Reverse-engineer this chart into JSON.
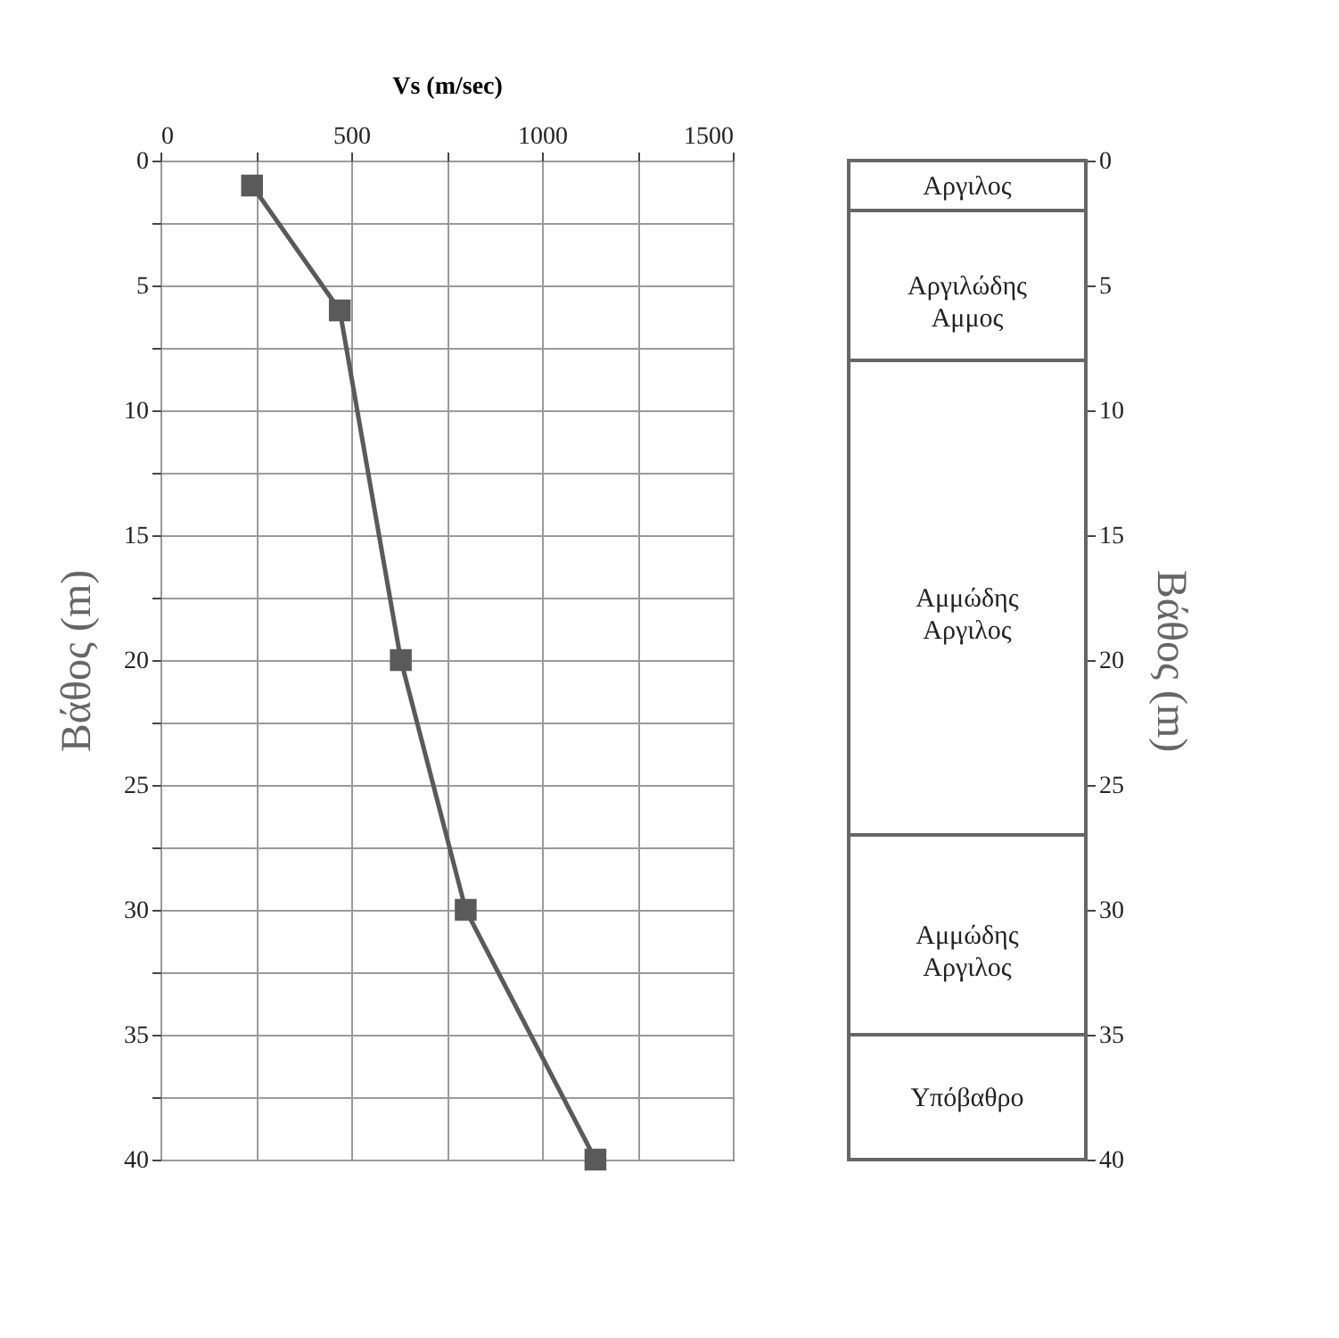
{
  "chart_data": [
    {
      "type": "line",
      "xlabel": "Vs (m/sec)",
      "ylabel": "Βάθος (m)",
      "x": [
        240,
        470,
        630,
        800,
        1140
      ],
      "xlim": [
        0,
        1500
      ],
      "xticks": [
        0,
        {
          "value": 250,
          "label": null
        },
        500,
        {
          "value": 750,
          "label": null
        },
        1000,
        {
          "value": 1250,
          "label": null
        },
        1500
      ],
      "ylim": [
        40,
        0
      ],
      "yticks": [
        0,
        {
          "value": 2.5,
          "label": null
        },
        5,
        {
          "value": 7.5,
          "label": null
        },
        10,
        {
          "value": 12.5,
          "label": null
        },
        15,
        {
          "value": 17.5,
          "label": null
        },
        20,
        {
          "value": 22.5,
          "label": null
        },
        25,
        {
          "value": 27.5,
          "label": null
        },
        30,
        {
          "value": 32.5,
          "label": null
        },
        35,
        {
          "value": 37.5,
          "label": null
        },
        40
      ],
      "series": [
        {
          "color": "#5a5a5a",
          "values": [
            1,
            6,
            20,
            30,
            40
          ]
        }
      ],
      "grid": true,
      "marker": "square",
      "line_style": "solid",
      "legend": false
    },
    {
      "type": "bar",
      "stacked": true,
      "categories": [
        null
      ],
      "ylabel": "Βάθος (m)",
      "ylim": [
        40,
        0
      ],
      "yticks": [
        0,
        5,
        10,
        15,
        20,
        25,
        30,
        35,
        40
      ],
      "tick_labels": "y",
      "legend": false,
      "series": [
        {
          "name": "Αργιλος",
          "color": "#ffffff",
          "values": [
            2
          ]
        },
        {
          "name": "Αργιλώδης Αμμος",
          "color": "#ffffff",
          "values": [
            6
          ]
        },
        {
          "name": "Αμμώδης Αργιλος",
          "color": "#ffffff",
          "values": [
            19
          ]
        },
        {
          "name": "Αμμώδης Αργιλος",
          "color": "#ffffff",
          "values": [
            8
          ]
        },
        {
          "name": "Υπόβαθρο",
          "color": "#ffffff",
          "values": [
            5
          ]
        }
      ]
    }
  ]
}
